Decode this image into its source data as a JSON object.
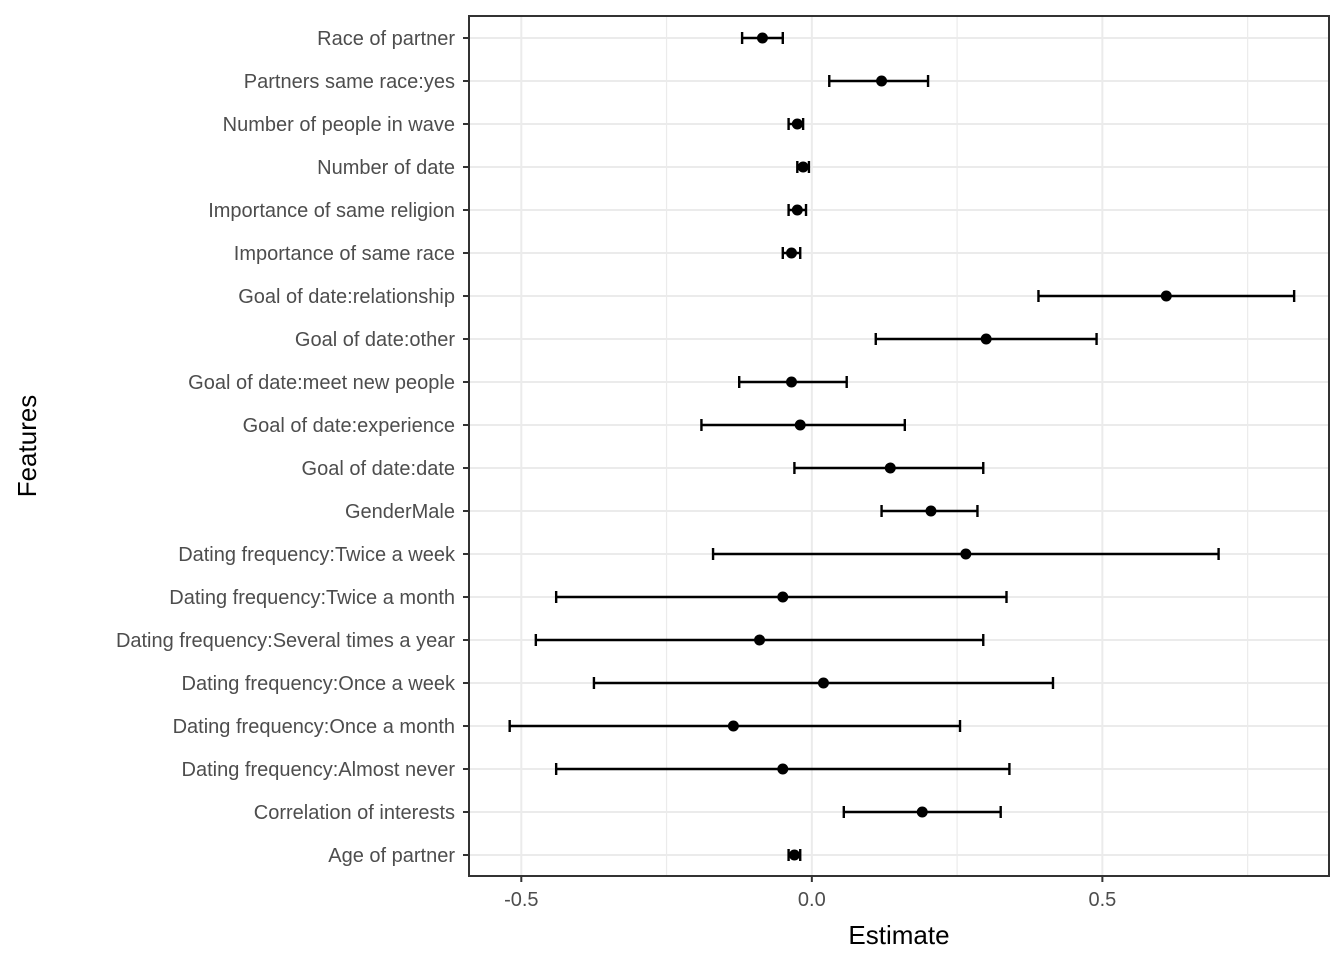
{
  "chart_data": {
    "type": "scatter",
    "subtype": "coefficient-plot-with-error-bars",
    "title": "",
    "xlabel": "Estimate",
    "ylabel": "Features",
    "xlim": [
      -0.59,
      0.89
    ],
    "x_ticks": [
      -0.5,
      0.0,
      0.5
    ],
    "x_tick_labels": [
      "-0.5",
      "0.0",
      "0.5"
    ],
    "grid": true,
    "legend": "none",
    "point_color": "#000000",
    "categories": [
      "Age of partner",
      "Correlation of interests",
      "Dating frequency:Almost never",
      "Dating frequency:Once a month",
      "Dating frequency:Once a week",
      "Dating frequency:Several times a year",
      "Dating frequency:Twice a month",
      "Dating frequency:Twice a week",
      "GenderMale",
      "Goal of date:date",
      "Goal of date:experience",
      "Goal of date:meet new people",
      "Goal of date:other",
      "Goal of date:relationship",
      "Importance of same race",
      "Importance of same religion",
      "Number of date",
      "Number of people in wave",
      "Partners same race:yes",
      "Race of partner"
    ],
    "estimates": [
      -0.03,
      0.19,
      -0.05,
      -0.135,
      0.02,
      -0.09,
      -0.05,
      0.265,
      0.205,
      0.135,
      -0.02,
      -0.035,
      0.3,
      0.61,
      -0.035,
      -0.025,
      -0.015,
      -0.025,
      0.12,
      -0.085
    ],
    "lower": [
      -0.04,
      0.055,
      -0.44,
      -0.52,
      -0.375,
      -0.475,
      -0.44,
      -0.17,
      0.12,
      -0.03,
      -0.19,
      -0.125,
      0.11,
      0.39,
      -0.05,
      -0.04,
      -0.025,
      -0.04,
      0.03,
      -0.12
    ],
    "upper": [
      -0.02,
      0.325,
      0.34,
      0.255,
      0.415,
      0.295,
      0.335,
      0.7,
      0.285,
      0.295,
      0.16,
      0.06,
      0.49,
      0.83,
      -0.02,
      -0.01,
      -0.005,
      -0.015,
      0.2,
      -0.05
    ]
  }
}
